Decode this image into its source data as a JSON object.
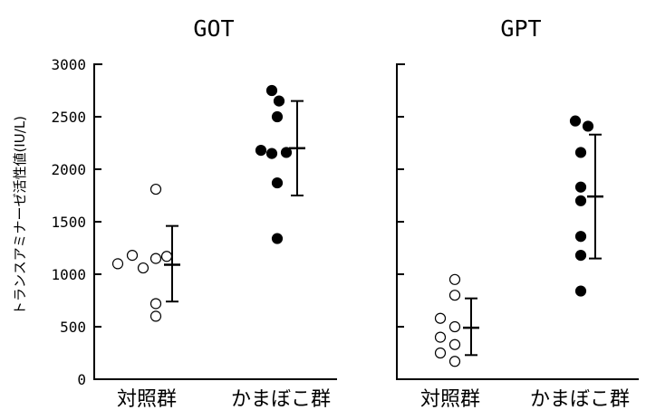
{
  "chart_data": [
    {
      "type": "scatter",
      "title": "GOT",
      "ylabel": "トランスアミナーゼ活性値(IU/L)",
      "ylim": [
        0,
        3000
      ],
      "yticks": [
        0,
        500,
        1000,
        1500,
        2000,
        2500,
        3000
      ],
      "categories": [
        "対照群",
        "かまぼこ群"
      ],
      "series": [
        {
          "category": "対照群",
          "marker": "open-circle",
          "points": [
            1100,
            1180,
            1060,
            1150,
            1170,
            1810,
            720,
            600
          ],
          "mean": 1090,
          "error_high": 1460,
          "error_low": 740
        },
        {
          "category": "かまぼこ群",
          "marker": "filled-circle",
          "points": [
            2750,
            2650,
            2500,
            2180,
            2150,
            2160,
            1870,
            1340
          ],
          "mean": 2200,
          "error_high": 2650,
          "error_low": 1750
        }
      ]
    },
    {
      "type": "scatter",
      "title": "GPT",
      "ylim": [
        0,
        3000
      ],
      "categories": [
        "対照群",
        "かまぼこ群"
      ],
      "series": [
        {
          "category": "対照群",
          "marker": "open-circle",
          "points": [
            950,
            800,
            580,
            500,
            400,
            330,
            250,
            170
          ],
          "mean": 490,
          "error_high": 770,
          "error_low": 230
        },
        {
          "category": "かまぼこ群",
          "marker": "filled-circle",
          "points": [
            2460,
            2410,
            2160,
            1830,
            1700,
            1360,
            1180,
            840
          ],
          "mean": 1740,
          "error_high": 2330,
          "error_low": 1150
        }
      ]
    }
  ]
}
